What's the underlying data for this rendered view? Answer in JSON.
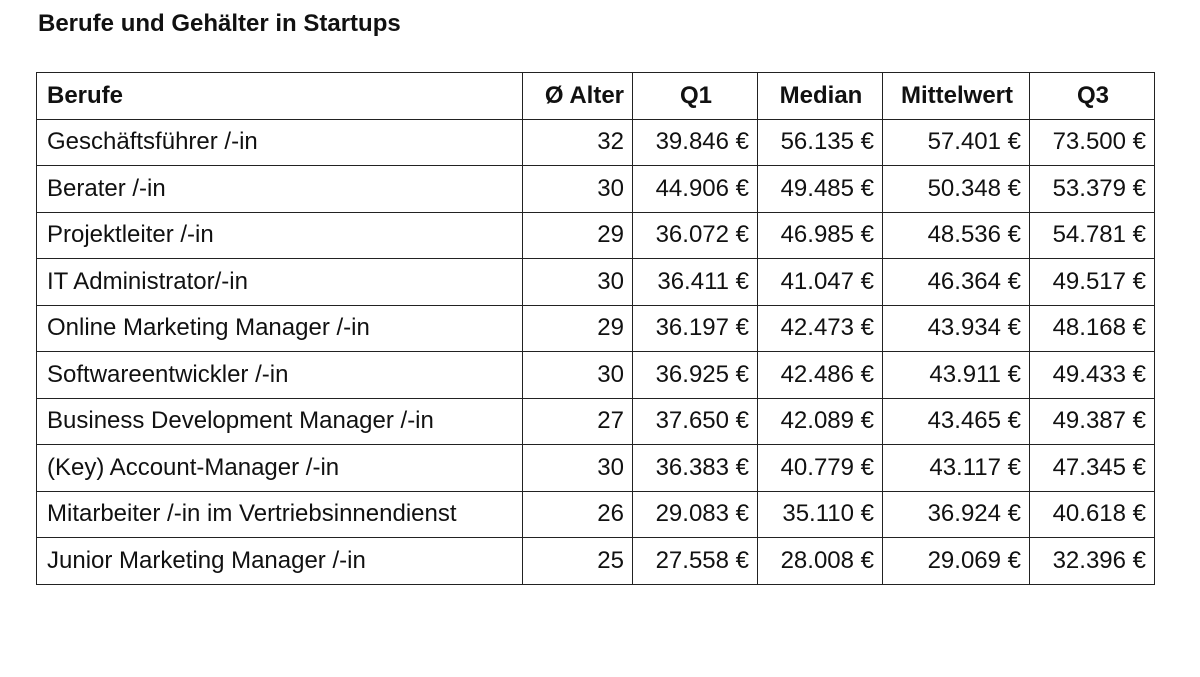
{
  "title": "Berufe und Gehälter in Startups",
  "table": {
    "headers": [
      "Berufe",
      "Ø Alter",
      "Q1",
      "Median",
      "Mittelwert",
      "Q3"
    ],
    "rows": [
      [
        "Geschäftsführer /-in",
        "32",
        "39.846 €",
        "56.135 €",
        "57.401 €",
        "73.500 €"
      ],
      [
        "Berater /-in",
        "30",
        "44.906 €",
        "49.485 €",
        "50.348 €",
        "53.379 €"
      ],
      [
        "Projektleiter /-in",
        "29",
        "36.072 €",
        "46.985 €",
        "48.536 €",
        "54.781 €"
      ],
      [
        "IT Administrator/-in",
        "30",
        "36.411 €",
        "41.047 €",
        "46.364 €",
        "49.517 €"
      ],
      [
        "Online Marketing Manager /-in",
        "29",
        "36.197 €",
        "42.473 €",
        "43.934 €",
        "48.168 €"
      ],
      [
        "Softwareentwickler /-in",
        "30",
        "36.925 €",
        "42.486 €",
        "43.911 €",
        "49.433 €"
      ],
      [
        "Business Development Manager /-in",
        "27",
        "37.650 €",
        "42.089 €",
        "43.465 €",
        "49.387 €"
      ],
      [
        "(Key) Account-Manager /-in",
        "30",
        "36.383 €",
        "40.779 €",
        "43.117 €",
        "47.345 €"
      ],
      [
        "Mitarbeiter /-in im Vertriebsinnendienst",
        "26",
        "29.083 €",
        "35.110 €",
        "36.924 €",
        "40.618 €"
      ],
      [
        "Junior Marketing Manager /-in",
        "25",
        "27.558 €",
        "28.008 €",
        "29.069 €",
        "32.396 €"
      ]
    ]
  }
}
